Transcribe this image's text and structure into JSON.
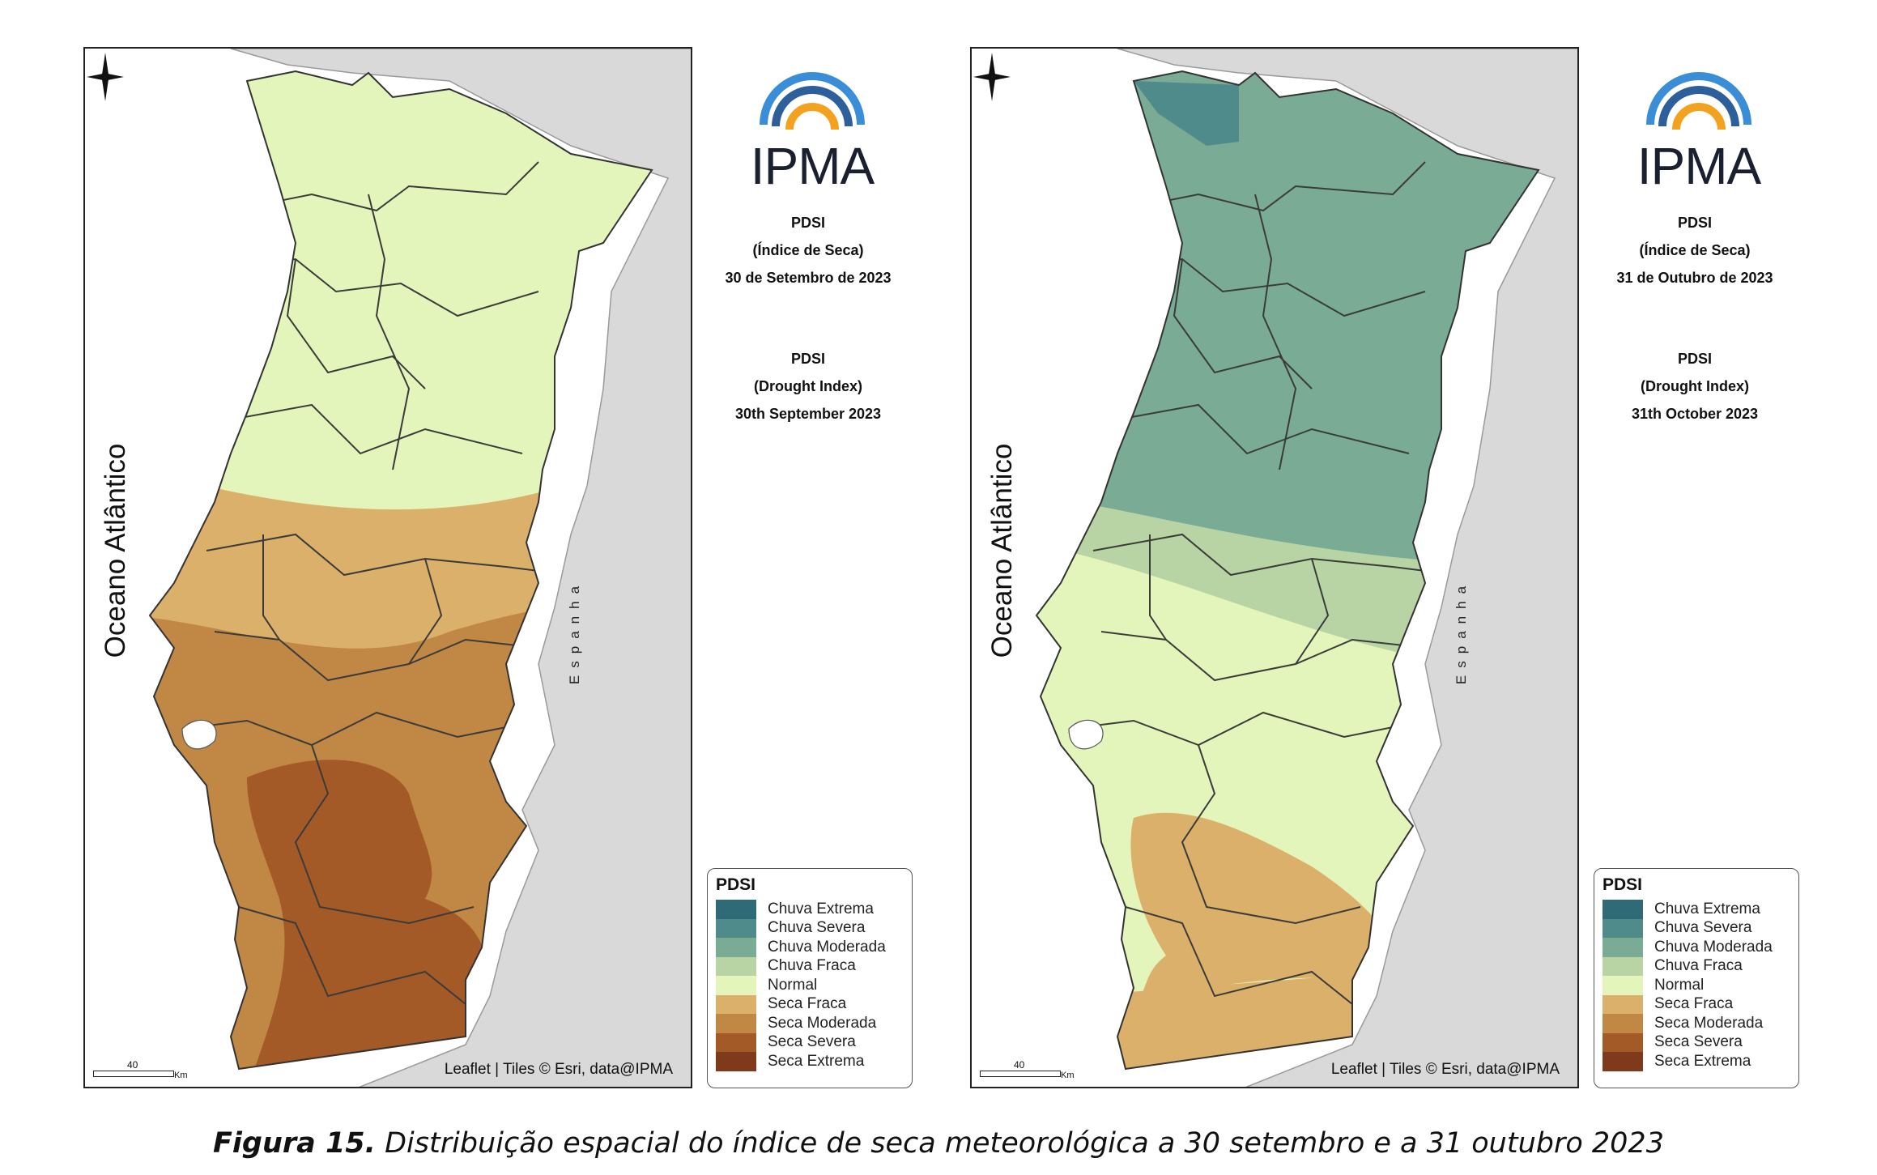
{
  "panels": [
    {
      "id": "left",
      "ocean_label": "Oceano Atlântico",
      "spain_label": "Espanha",
      "attribution": "Leaflet | Tiles © Esri, data@IPMA",
      "scale_value": "40",
      "scale_unit": "Km",
      "logo": "IPMA",
      "index_pt": {
        "line1": "PDSI",
        "line2": "(Índice de Seca)",
        "line3": "30 de Setembro de 2023"
      },
      "index_en": {
        "line1": "PDSI",
        "line2": "(Drought Index)",
        "line3": "30th September 2023"
      },
      "band_colors": [
        "#e4f5bb",
        "#dbb06a",
        "#c08844",
        "#a35a26"
      ]
    },
    {
      "id": "right",
      "ocean_label": "Oceano Atlântico",
      "spain_label": "Espanha",
      "attribution": "Leaflet | Tiles © Esri, data@IPMA",
      "scale_value": "40",
      "scale_unit": "Km",
      "logo": "IPMA",
      "index_pt": {
        "line1": "PDSI",
        "line2": "(Índice de Seca)",
        "line3": "31 de Outubro de 2023"
      },
      "index_en": {
        "line1": "PDSI",
        "line2": "(Drought Index)",
        "line3": "31th October 2023"
      },
      "band_colors": [
        "#7aab95",
        "#b8d4a4",
        "#e4f5bb",
        "#dbb06a"
      ]
    }
  ],
  "legend": {
    "title": "PDSI",
    "items": [
      {
        "label": "Chuva Extrema",
        "color": "#2e6b76"
      },
      {
        "label": "Chuva Severa",
        "color": "#4f8b8a"
      },
      {
        "label": "Chuva Moderada",
        "color": "#7aab95"
      },
      {
        "label": "Chuva Fraca",
        "color": "#b8d4a4"
      },
      {
        "label": "Normal",
        "color": "#e4f5bb"
      },
      {
        "label": "Seca Fraca",
        "color": "#dbb06a"
      },
      {
        "label": "Seca Moderada",
        "color": "#c08844"
      },
      {
        "label": "Seca Severa",
        "color": "#a35a26"
      },
      {
        "label": "Seca Extrema",
        "color": "#7e3a1a"
      }
    ]
  },
  "caption": {
    "bold": "Figura 15.",
    "text": " Distribuição espacial do índice de seca meteorológica a 30 setembro e a 31 outubro 2023"
  }
}
